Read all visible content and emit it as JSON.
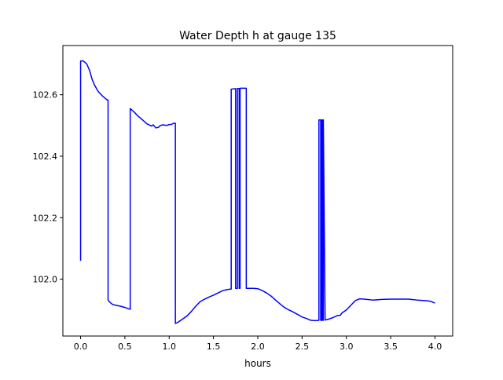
{
  "chart_data": {
    "type": "line",
    "title": "Water Depth h at gauge 135",
    "xlabel": "hours",
    "ylabel": "",
    "xlim": [
      -0.2,
      4.2
    ],
    "ylim": [
      101.815,
      102.76
    ],
    "xticks": [
      0.0,
      0.5,
      1.0,
      1.5,
      2.0,
      2.5,
      3.0,
      3.5,
      4.0
    ],
    "xtick_labels": [
      "0.0",
      "0.5",
      "1.0",
      "1.5",
      "2.0",
      "2.5",
      "3.0",
      "3.5",
      "4.0"
    ],
    "yticks": [
      102.0,
      102.2,
      102.4,
      102.6
    ],
    "ytick_labels": [
      "102.0",
      "102.2",
      "102.4",
      "102.6"
    ],
    "grid": false,
    "series": [
      {
        "color": "#0000ff",
        "x": [
          0.0,
          0.0,
          0.03,
          0.07,
          0.1,
          0.13,
          0.16,
          0.2,
          0.25,
          0.3,
          0.31,
          0.31,
          0.33,
          0.36,
          0.4,
          0.45,
          0.5,
          0.54,
          0.56,
          0.56,
          0.6,
          0.65,
          0.7,
          0.75,
          0.8,
          0.82,
          0.85,
          0.88,
          0.9,
          0.93,
          0.97,
          1.0,
          1.02,
          1.05,
          1.07,
          1.07,
          1.1,
          1.15,
          1.2,
          1.25,
          1.3,
          1.35,
          1.4,
          1.45,
          1.5,
          1.55,
          1.6,
          1.65,
          1.7,
          1.7,
          1.75,
          1.75,
          1.77,
          1.77,
          1.79,
          1.79,
          1.8,
          1.8,
          1.82,
          1.82,
          1.87,
          1.87,
          1.95,
          2.0,
          2.05,
          2.1,
          2.15,
          2.2,
          2.25,
          2.3,
          2.35,
          2.4,
          2.45,
          2.5,
          2.55,
          2.6,
          2.65,
          2.69,
          2.69,
          2.71,
          2.71,
          2.72,
          2.72,
          2.73,
          2.73,
          2.74,
          2.74,
          2.76,
          2.8,
          2.85,
          2.9,
          2.93,
          2.95,
          3.0,
          3.05,
          3.1,
          3.15,
          3.2,
          3.3,
          3.4,
          3.5,
          3.6,
          3.7,
          3.8,
          3.9,
          3.95,
          4.0
        ],
        "y": [
          102.06,
          102.71,
          102.71,
          102.7,
          102.68,
          102.65,
          102.63,
          102.61,
          102.595,
          102.583,
          102.583,
          101.932,
          101.925,
          101.918,
          101.915,
          101.912,
          101.908,
          101.904,
          101.902,
          102.555,
          102.545,
          102.53,
          102.518,
          102.505,
          102.498,
          102.502,
          102.492,
          102.494,
          102.5,
          102.502,
          102.5,
          102.503,
          102.503,
          102.507,
          102.507,
          101.856,
          101.86,
          101.87,
          101.88,
          101.895,
          101.912,
          101.927,
          101.935,
          101.942,
          101.948,
          101.955,
          101.962,
          101.966,
          101.968,
          102.618,
          102.62,
          101.97,
          101.97,
          102.62,
          102.62,
          101.97,
          101.97,
          102.621,
          102.621,
          102.621,
          102.621,
          101.97,
          101.97,
          101.969,
          101.963,
          101.955,
          101.945,
          101.932,
          101.92,
          101.908,
          101.9,
          101.893,
          101.885,
          101.877,
          101.872,
          101.866,
          101.865,
          101.866,
          102.518,
          102.518,
          101.866,
          101.866,
          102.518,
          102.518,
          101.866,
          101.866,
          102.518,
          101.867,
          101.87,
          101.875,
          101.882,
          101.882,
          101.89,
          101.9,
          101.915,
          101.93,
          101.936,
          101.935,
          101.932,
          101.934,
          101.935,
          101.935,
          101.935,
          101.932,
          101.93,
          101.928,
          101.922
        ]
      }
    ]
  }
}
